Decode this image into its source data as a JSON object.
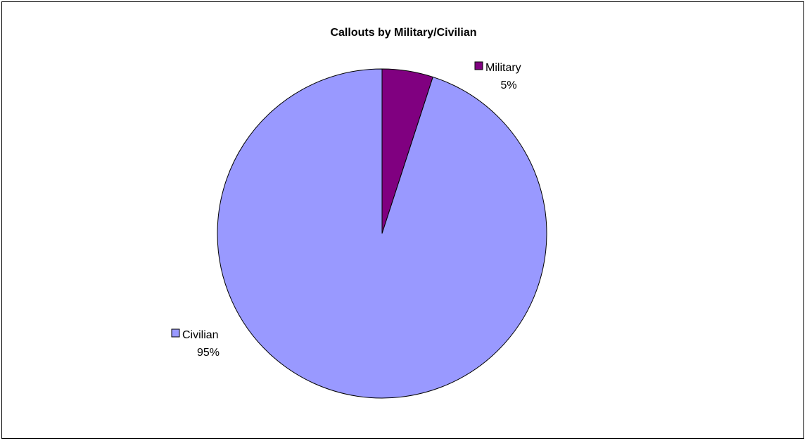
{
  "chart_data": {
    "type": "pie",
    "title": "Callouts by Military/Civilian",
    "slices": [
      {
        "label": "Military",
        "value": 5,
        "percent_label": "5%",
        "color": "#800080"
      },
      {
        "label": "Civilian",
        "value": 95,
        "percent_label": "95%",
        "color": "#9999FF"
      }
    ],
    "start_angle_deg": 0,
    "direction": "clockwise",
    "border_color": "#000000",
    "legend": "none",
    "data_labels": "outside-with-key"
  }
}
